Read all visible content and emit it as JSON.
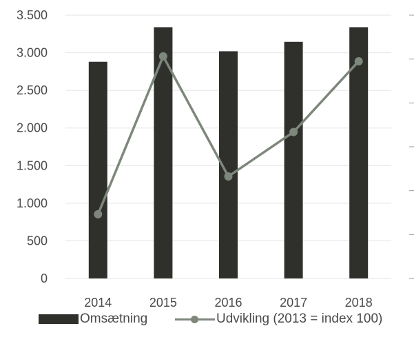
{
  "chart_data": {
    "type": "bar",
    "categories": [
      "2014",
      "2015",
      "2016",
      "2017",
      "2018"
    ],
    "series": [
      {
        "name": "Omsætning",
        "type": "bar",
        "axis": "left",
        "values": [
          2880,
          3340,
          3020,
          3145,
          3340
        ],
        "color": "#2f302c"
      },
      {
        "name": "Udvikling (2013 = index 100)",
        "type": "line",
        "axis": "right",
        "values": [
          101.9,
          111.5,
          104.2,
          106.9,
          111.2
        ],
        "color": "#7e877b"
      }
    ],
    "left_axis": {
      "ylim": [
        0,
        3500
      ],
      "ticks": [
        {
          "v": 0,
          "label": "0"
        },
        {
          "v": 500,
          "label": "500"
        },
        {
          "v": 1000,
          "label": "1.000"
        },
        {
          "v": 1500,
          "label": "1.500"
        },
        {
          "v": 2000,
          "label": "2.000"
        },
        {
          "v": 2500,
          "label": "2.500"
        },
        {
          "v": 3000,
          "label": "3.000"
        },
        {
          "v": 3500,
          "label": "3.500"
        }
      ]
    },
    "right_axis": {
      "ylim": [
        98,
        114
      ]
    },
    "grid": true,
    "legend": "bottom"
  },
  "legend": {
    "bar_label": "Omsætning",
    "line_label": "Udvikling (2013 = index 100)"
  }
}
